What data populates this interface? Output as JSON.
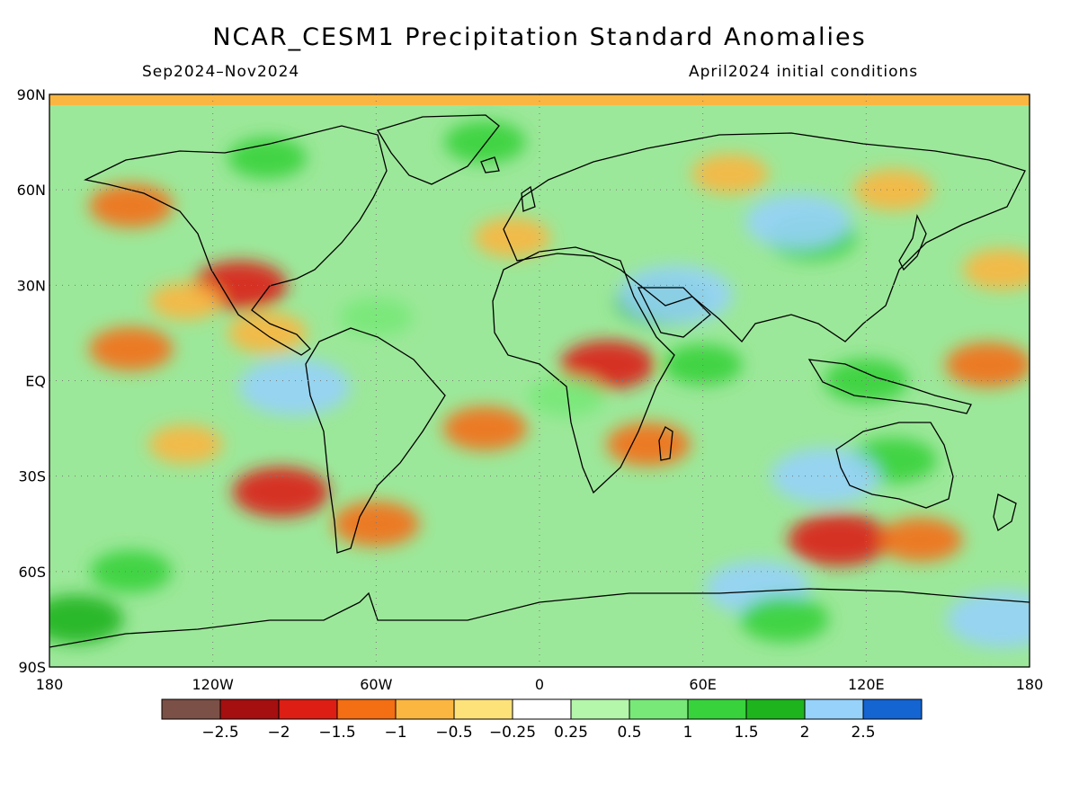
{
  "title": "NCAR_CESM1 Precipitation Standard Anomalies",
  "subtitle_left": "Sep2024–Nov2024",
  "subtitle_right": "April2024 initial conditions",
  "map": {
    "lon_ticks": [
      {
        "lon": -180,
        "label": "180"
      },
      {
        "lon": -120,
        "label": "120W"
      },
      {
        "lon": -60,
        "label": "60W"
      },
      {
        "lon": 0,
        "label": "0"
      },
      {
        "lon": 60,
        "label": "60E"
      },
      {
        "lon": 120,
        "label": "120E"
      },
      {
        "lon": 180,
        "label": "180"
      }
    ],
    "lat_ticks": [
      {
        "lat": 90,
        "label": "90N"
      },
      {
        "lat": 60,
        "label": "60N"
      },
      {
        "lat": 30,
        "label": "30N"
      },
      {
        "lat": 0,
        "label": "EQ"
      },
      {
        "lat": -30,
        "label": "30S"
      },
      {
        "lat": -60,
        "label": "60S"
      },
      {
        "lat": -90,
        "label": "90S"
      }
    ],
    "gridlines": "dotted",
    "projection": "cylindrical equidistant"
  },
  "colorbar": {
    "colors": [
      "#7b5046",
      "#a50f0f",
      "#dc1e14",
      "#f46e14",
      "#fbb641",
      "#fde27a",
      "#ffffff",
      "#b4f6aa",
      "#78e878",
      "#37d23c",
      "#1eb41e",
      "#96d2fa",
      "#1464d2"
    ],
    "labels": [
      "−2.5",
      "−2",
      "−1.5",
      "−1",
      "−0.5",
      "−0.25",
      "0.25",
      "0.5",
      "1",
      "1.5",
      "2",
      "2.5"
    ]
  },
  "anomaly_regions": [
    {
      "lon": -150,
      "lat": 10,
      "value": -1.2
    },
    {
      "lon": -110,
      "lat": 30,
      "value": -1.6
    },
    {
      "lon": -100,
      "lat": 15,
      "value": -1.0
    },
    {
      "lon": -95,
      "lat": -35,
      "value": -1.7
    },
    {
      "lon": -130,
      "lat": -20,
      "value": -0.8
    },
    {
      "lon": -150,
      "lat": 55,
      "value": -1.2
    },
    {
      "lon": -130,
      "lat": 25,
      "value": -0.7
    },
    {
      "lon": -60,
      "lat": -45,
      "value": -1.3
    },
    {
      "lon": -20,
      "lat": -15,
      "value": -1.2
    },
    {
      "lon": 25,
      "lat": 5,
      "value": -1.6
    },
    {
      "lon": 40,
      "lat": -20,
      "value": -1.2
    },
    {
      "lon": 110,
      "lat": -50,
      "value": -1.9
    },
    {
      "lon": 140,
      "lat": -50,
      "value": -1.2
    },
    {
      "lon": 165,
      "lat": 5,
      "value": -1.3
    },
    {
      "lon": 170,
      "lat": 35,
      "value": -1.0
    },
    {
      "lon": -10,
      "lat": 45,
      "value": -0.9
    },
    {
      "lon": 70,
      "lat": 65,
      "value": -0.9
    },
    {
      "lon": 130,
      "lat": 60,
      "value": -1.0
    },
    {
      "lon": -60,
      "lat": 20,
      "value": 0.8
    },
    {
      "lon": 45,
      "lat": 25,
      "value": 1.6
    },
    {
      "lon": 50,
      "lat": 27,
      "value": 2.4
    },
    {
      "lon": 100,
      "lat": 45,
      "value": 1.4
    },
    {
      "lon": 95,
      "lat": 50,
      "value": 2.1
    },
    {
      "lon": 120,
      "lat": 0,
      "value": 1.2
    },
    {
      "lon": 130,
      "lat": -25,
      "value": 1.3
    },
    {
      "lon": 105,
      "lat": -30,
      "value": 2.2
    },
    {
      "lon": -90,
      "lat": -2,
      "value": 2.3
    },
    {
      "lon": 80,
      "lat": -65,
      "value": 2.0
    },
    {
      "lon": 90,
      "lat": -75,
      "value": 1.4
    },
    {
      "lon": 170,
      "lat": -75,
      "value": 2.3
    },
    {
      "lon": -170,
      "lat": -75,
      "value": 1.6
    },
    {
      "lon": -100,
      "lat": 70,
      "value": 1.0
    },
    {
      "lon": -20,
      "lat": 75,
      "value": 1.1
    },
    {
      "lon": 10,
      "lat": -5,
      "value": 0.9
    },
    {
      "lon": 60,
      "lat": 5,
      "value": 1.0
    },
    {
      "lon": -150,
      "lat": -60,
      "value": 1.1
    }
  ]
}
